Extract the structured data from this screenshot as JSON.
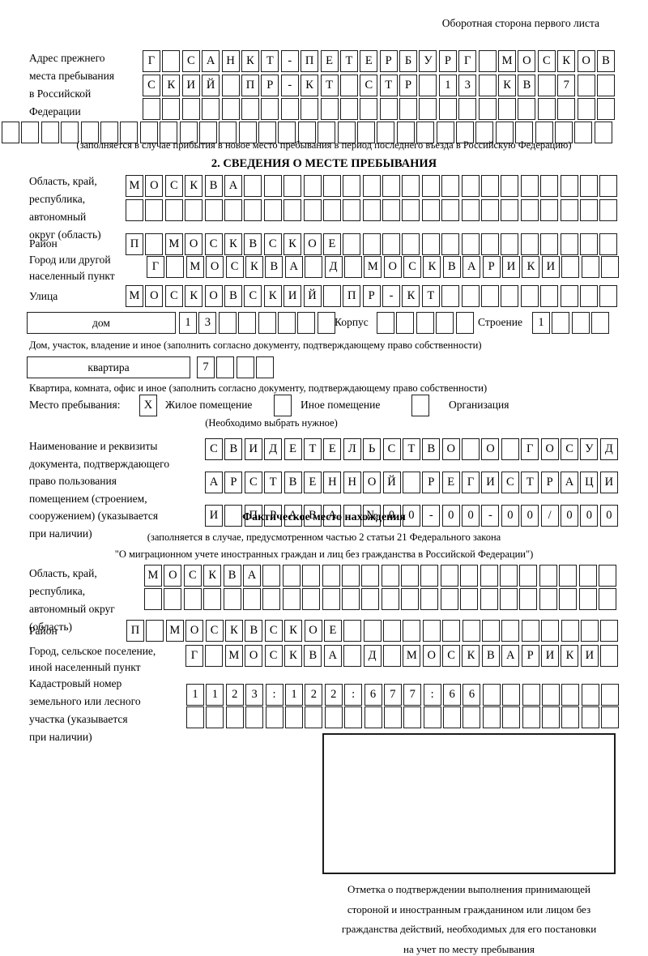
{
  "colors": {
    "ink": "#000000",
    "cell_border": "#1c1c1c",
    "paper": "#ffffff"
  },
  "header_note": "Оборотная сторона первого листа",
  "prev_address": {
    "label_lines": [
      "Адрес прежнего",
      "места пребывания",
      "в Российской",
      "Федерации"
    ],
    "row1": [
      "Г",
      "",
      "С",
      "А",
      "Н",
      "К",
      "Т",
      "-",
      "П",
      "Е",
      "Т",
      "Е",
      "Р",
      "Б",
      "У",
      "Р",
      "Г",
      "",
      "М",
      "О",
      "С",
      "К",
      "О",
      "В"
    ],
    "row2": [
      "С",
      "К",
      "И",
      "Й",
      "",
      "П",
      "Р",
      "-",
      "К",
      "Т",
      "",
      "С",
      "Т",
      "Р",
      "",
      "1",
      "3",
      "",
      "К",
      "В",
      "",
      "7",
      "",
      ""
    ],
    "row3": {
      "count": 24
    },
    "row4": {
      "count": 31
    },
    "caption": "(заполняется в случае прибытия в новое место пребывания в период последнего въезда в Российскую Федерацию)"
  },
  "section2": {
    "title": "2. СВЕДЕНИЯ О МЕСТЕ ПРЕБЫВАНИЯ",
    "region": {
      "label_lines": [
        "Область, край,",
        "республика,",
        "автономный",
        "округ (область)"
      ],
      "row1": [
        "М",
        "О",
        "С",
        "К",
        "В",
        "А",
        "",
        "",
        "",
        "",
        "",
        "",
        "",
        "",
        "",
        "",
        "",
        "",
        "",
        "",
        "",
        "",
        "",
        "",
        ""
      ],
      "row2": {
        "count": 25
      }
    },
    "district": {
      "label": "Район",
      "row": [
        "П",
        "",
        "М",
        "О",
        "С",
        "К",
        "В",
        "С",
        "К",
        "О",
        "Е",
        "",
        "",
        "",
        "",
        "",
        "",
        "",
        "",
        "",
        "",
        "",
        "",
        "",
        ""
      ]
    },
    "city": {
      "label_lines": [
        "Город или другой",
        "населенный пункт"
      ],
      "row": [
        "Г",
        "",
        "М",
        "О",
        "С",
        "К",
        "В",
        "А",
        "",
        "Д",
        "",
        "М",
        "О",
        "С",
        "К",
        "В",
        "А",
        "Р",
        "И",
        "К",
        "И",
        "",
        "",
        ""
      ]
    },
    "street": {
      "label": "Улица",
      "row": [
        "М",
        "О",
        "С",
        "К",
        "О",
        "В",
        "С",
        "К",
        "И",
        "Й",
        "",
        "П",
        "Р",
        "-",
        "К",
        "Т",
        "",
        "",
        "",
        "",
        "",
        "",
        "",
        "",
        ""
      ]
    },
    "house": {
      "box_label": "дом",
      "cells": [
        "1",
        "3",
        "",
        "",
        "",
        "",
        "",
        ""
      ],
      "korpus_label": "Корпус",
      "korpus_cells": {
        "count": 5
      },
      "stroenie_label": "Строение",
      "stroenie_cells": [
        "1",
        "",
        "",
        ""
      ],
      "caption": "Дом, участок, владение и иное (заполнить согласно документу, подтверждающему право собственности)"
    },
    "apartment": {
      "box_label": "квартира",
      "cells": [
        "7",
        "",
        "",
        ""
      ],
      "caption": "Квартира, комната, офис и иное (заполнить согласно документу, подтверждающему право собственности)"
    },
    "stay_type": {
      "label": "Место пребывания:",
      "options": [
        {
          "mark": "X",
          "label": "Жилое помещение"
        },
        {
          "mark": "",
          "label": "Иное помещение"
        },
        {
          "mark": "",
          "label": "Организация"
        }
      ],
      "note": "(Необходимо выбрать нужное)"
    },
    "document": {
      "label_lines": [
        "Наименование и реквизиты",
        "документа, подтверждающего",
        "право пользования",
        "помещением (строением,",
        "сооружением) (указывается",
        "при наличии)"
      ],
      "row1": [
        "С",
        "В",
        "И",
        "Д",
        "Е",
        "Т",
        "Е",
        "Л",
        "Ь",
        "С",
        "Т",
        "В",
        "О",
        "",
        "О",
        "",
        "Г",
        "О",
        "С",
        "У",
        "Д"
      ],
      "row2": [
        "А",
        "Р",
        "С",
        "Т",
        "В",
        "Е",
        "Н",
        "Н",
        "О",
        "Й",
        "",
        "Р",
        "Е",
        "Г",
        "И",
        "С",
        "Т",
        "Р",
        "А",
        "Ц",
        "И"
      ],
      "row3": [
        "И",
        "",
        "П",
        "Р",
        "А",
        "В",
        "А",
        "",
        "№",
        "0",
        "0",
        "-",
        "0",
        "0",
        "-",
        "0",
        "0",
        "/",
        "0",
        "0",
        "0"
      ]
    }
  },
  "actual_location": {
    "title": "Фактическое место нахождения",
    "caption_lines": [
      "(заполняется в случае, предусмотренном частью 2 статьи 21 Федерального закона",
      "\"О миграционном учете иностранных граждан и лиц без гражданства в Российской Федерации\")"
    ],
    "region": {
      "label_lines": [
        "Область, край,",
        "республика,",
        "автономный округ",
        "(область)"
      ],
      "row1": [
        "М",
        "О",
        "С",
        "К",
        "В",
        "А",
        "",
        "",
        "",
        "",
        "",
        "",
        "",
        "",
        "",
        "",
        "",
        "",
        "",
        "",
        "",
        "",
        "",
        ""
      ],
      "row2": {
        "count": 24
      }
    },
    "district": {
      "label": "Район",
      "row": [
        "П",
        "",
        "М",
        "О",
        "С",
        "К",
        "В",
        "С",
        "К",
        "О",
        "Е",
        "",
        "",
        "",
        "",
        "",
        "",
        "",
        "",
        "",
        "",
        "",
        "",
        "",
        ""
      ]
    },
    "city": {
      "label_lines": [
        "Город, сельское поселение,",
        "иной населенный пункт"
      ],
      "row": [
        "Г",
        "",
        "М",
        "О",
        "С",
        "К",
        "В",
        "А",
        "",
        "Д",
        "",
        "М",
        "О",
        "С",
        "К",
        "В",
        "А",
        "Р",
        "И",
        "К",
        "И",
        ""
      ]
    },
    "cadastre": {
      "label_lines": [
        "Кадастровый номер",
        "земельного или лесного",
        "участка (указывается",
        "при наличии)"
      ],
      "row1": [
        "1",
        "1",
        "2",
        "3",
        ":",
        "1",
        "2",
        "2",
        ":",
        "6",
        "7",
        "7",
        ":",
        "6",
        "6",
        "",
        "",
        "",
        "",
        "",
        "",
        ""
      ],
      "row2": {
        "count": 22
      }
    },
    "stamp_caption_lines": [
      "Отметка о подтверждении выполнения принимающей",
      "стороной и иностранным гражданином или лицом без",
      "гражданства действий, необходимых для его постановки",
      "на учет по месту пребывания"
    ]
  }
}
